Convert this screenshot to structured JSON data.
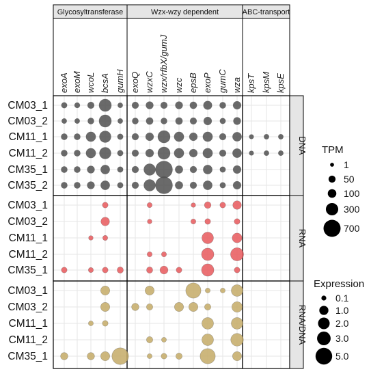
{
  "chart_data": {
    "type": "bubble",
    "groups": [
      {
        "label": "Glycosyltransferase",
        "genes": [
          "exoA",
          "exoM",
          "wcoL",
          "bcsA",
          "gumH"
        ]
      },
      {
        "label": "Wzx-wzy dependent",
        "genes": [
          "exoQ",
          "wzxC",
          "wzx/rfbX/gumJ",
          "wzc",
          "epsB",
          "exoP",
          "gumC",
          "wza"
        ]
      },
      {
        "label": "ABC-transport",
        "genes": [
          "kpsT",
          "kpsM",
          "kpsE"
        ]
      }
    ],
    "panels": [
      {
        "label": "DNA",
        "color": "#505050",
        "samples": [
          "CM03_1",
          "CM03_2",
          "CM11_1",
          "CM11_2",
          "CM35_1",
          "CM35_2"
        ],
        "values": [
          [
            20,
            15,
            40,
            300,
            10,
            40,
            60,
            40,
            60,
            50,
            100,
            30,
            80,
            0,
            0,
            0
          ],
          [
            10,
            10,
            30,
            300,
            10,
            30,
            50,
            30,
            50,
            40,
            80,
            20,
            60,
            0,
            0,
            0
          ],
          [
            30,
            30,
            150,
            250,
            20,
            40,
            80,
            300,
            150,
            80,
            150,
            40,
            120,
            5,
            10,
            10
          ],
          [
            30,
            30,
            150,
            250,
            20,
            40,
            80,
            300,
            150,
            80,
            150,
            40,
            120,
            5,
            10,
            10
          ],
          [
            30,
            30,
            60,
            120,
            20,
            40,
            250,
            700,
            70,
            40,
            120,
            20,
            80,
            0,
            0,
            0
          ],
          [
            30,
            30,
            60,
            120,
            20,
            40,
            250,
            700,
            70,
            40,
            120,
            20,
            80,
            0,
            0,
            0
          ]
        ]
      },
      {
        "label": "RNA",
        "color": "#e8585c",
        "samples": [
          "CM03_1",
          "CM03_2",
          "CM11_1",
          "CM11_2",
          "CM35_1"
        ],
        "values": [
          [
            0,
            0,
            0,
            20,
            0,
            0,
            10,
            0,
            0,
            5,
            40,
            20,
            100,
            0,
            0,
            0
          ],
          [
            0,
            0,
            0,
            100,
            0,
            0,
            5,
            0,
            0,
            10,
            20,
            0,
            20,
            0,
            0,
            0
          ],
          [
            0,
            0,
            5,
            10,
            0,
            0,
            0,
            0,
            0,
            0,
            250,
            0,
            150,
            0,
            0,
            0
          ],
          [
            0,
            0,
            0,
            0,
            0,
            0,
            10,
            10,
            0,
            0,
            300,
            0,
            350,
            0,
            0,
            0
          ],
          [
            20,
            0,
            10,
            20,
            30,
            0,
            30,
            80,
            20,
            0,
            300,
            0,
            20,
            0,
            0,
            0
          ]
        ]
      },
      {
        "label": "RNA/DNA",
        "color": "#c4aa66",
        "samples": [
          "CM03_1",
          "CM03_2",
          "CM11_1",
          "CM11_2",
          "CM35_1"
        ],
        "values": [
          [
            0,
            0,
            0,
            1.0,
            0,
            0,
            1.0,
            0,
            0,
            4.0,
            0.1,
            0.1,
            2.0,
            0,
            0,
            0
          ],
          [
            0,
            0,
            0,
            1.0,
            0,
            0.5,
            0.3,
            0,
            1.0,
            1.0,
            0.3,
            0,
            1.5,
            0,
            0,
            0
          ],
          [
            0,
            0,
            0.1,
            0.2,
            0,
            0,
            0,
            0,
            0,
            0,
            2.0,
            0,
            2.0,
            0,
            0,
            0
          ],
          [
            0,
            0,
            0,
            0,
            0,
            0,
            0.3,
            0.1,
            0,
            0,
            2.0,
            0,
            2.5,
            0,
            0,
            0
          ],
          [
            0.5,
            0,
            0.5,
            1.0,
            5.0,
            0,
            0.1,
            0.2,
            0.3,
            0,
            4.0,
            0,
            1.0,
            0,
            0,
            0
          ]
        ]
      }
    ],
    "legend_tpm": {
      "title": "TPM",
      "entries": [
        "1",
        "50",
        "100",
        "300",
        "700"
      ],
      "values": [
        1,
        50,
        100,
        300,
        700
      ]
    },
    "legend_expr": {
      "title": "Expression",
      "entries": [
        "0.1",
        "1.0",
        "2.0",
        "3.0",
        "5.0"
      ],
      "values": [
        0.1,
        1.0,
        2.0,
        3.0,
        5.0
      ]
    }
  }
}
